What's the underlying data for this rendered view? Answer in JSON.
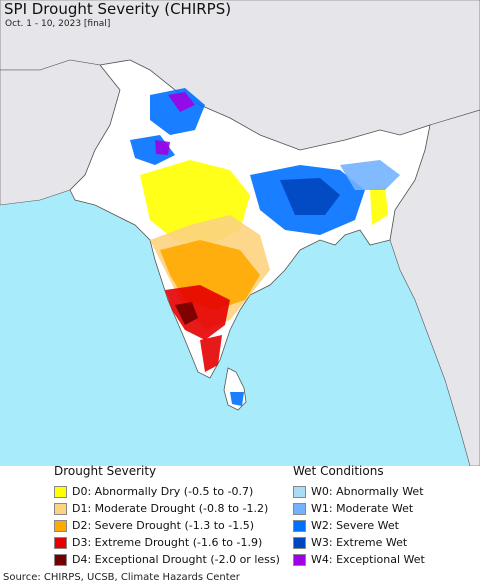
{
  "header": {
    "title": "SPI Drought Severity (CHIRPS)",
    "subtitle": "Oct. 1 - 10, 2023 [final]"
  },
  "legend": {
    "drought": {
      "title": "Drought Severity",
      "items": [
        {
          "label": "D0: Abnormally Dry (-0.5 to -0.7)",
          "color": "#ffff00"
        },
        {
          "label": "D1: Moderate Drought (-0.8 to -1.2)",
          "color": "#fcd37f"
        },
        {
          "label": "D2: Severe Drought (-1.3 to -1.5)",
          "color": "#ffaa00"
        },
        {
          "label": "D3: Extreme Drought (-1.6 to -1.9)",
          "color": "#e60000"
        },
        {
          "label": "D4: Exceptional Drought (-2.0 or less)",
          "color": "#730000"
        }
      ]
    },
    "wet": {
      "title": "Wet Conditions",
      "items": [
        {
          "label": "W0: Abnormally Wet",
          "color": "#aadcf5"
        },
        {
          "label": "W1: Moderate Wet",
          "color": "#73b2ff"
        },
        {
          "label": "W2: Severe Wet",
          "color": "#0070ff"
        },
        {
          "label": "W3: Extreme Wet",
          "color": "#0046be"
        },
        {
          "label": "W4: Exceptional Wet",
          "color": "#a000e6"
        }
      ]
    }
  },
  "map_colors": {
    "ocean": "#a8ecfb",
    "land": "#ffffff",
    "foreign_land": "#e6e6ea",
    "border": "#555555"
  },
  "footer": {
    "source": "Source: CHIRPS, UCSB, Climate Hazards Center"
  }
}
